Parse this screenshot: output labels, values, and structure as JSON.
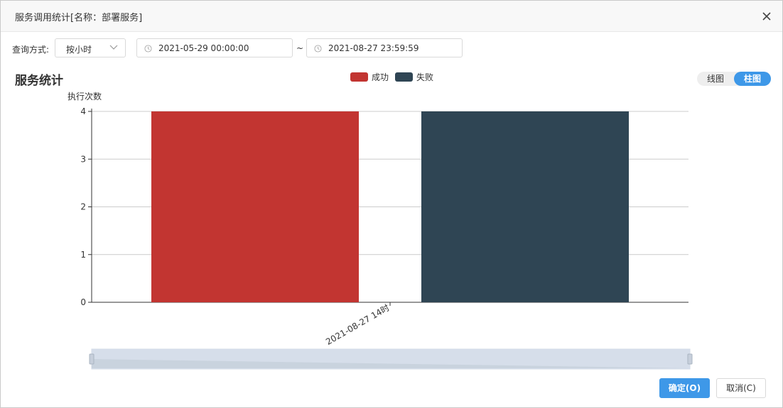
{
  "dialog": {
    "title": "服务调用统计[名称：部署服务]",
    "close_icon": "close-icon"
  },
  "query": {
    "label": "查询方式:",
    "mode": "按小时",
    "start": "2021-05-29 00:00:00",
    "separator": "~",
    "end": "2021-08-27 23:59:59"
  },
  "chart_header": {
    "title": "服务统计",
    "toggle": {
      "line_label": "线图",
      "bar_label": "柱图",
      "selected": "柱图"
    }
  },
  "chart_data": {
    "type": "bar",
    "categories": [
      "2021-08-27 14时"
    ],
    "series": [
      {
        "name": "成功",
        "values": [
          4
        ],
        "color": "#c23531"
      },
      {
        "name": "失败",
        "values": [
          4
        ],
        "color": "#2f4554"
      }
    ],
    "ylabel": "执行次数",
    "xlabel": "",
    "ylim": [
      0,
      4
    ],
    "yticks": [
      0,
      1,
      2,
      3,
      4
    ],
    "grid": true,
    "legend": "top-center",
    "data_zoom": {
      "start": 0,
      "end": 100
    }
  },
  "footer": {
    "ok_label": "确定(O)",
    "cancel_label": "取消(C)"
  }
}
